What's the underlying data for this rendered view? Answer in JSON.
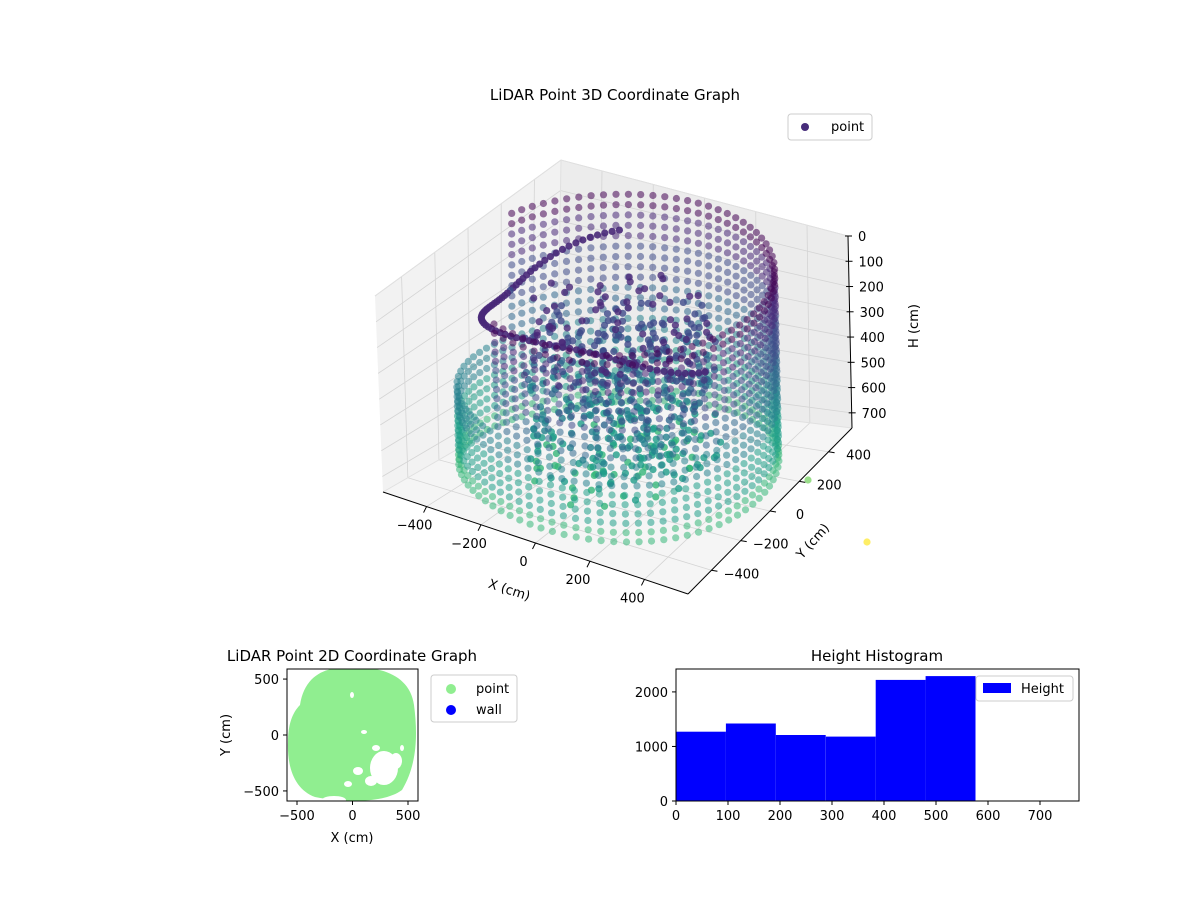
{
  "figure": {
    "colors": {
      "viridis_dark": "#440154",
      "viridis_purple": "#482878",
      "viridis_blue": "#3e4a89",
      "viridis_teal": "#31688e",
      "viridis_cyan": "#26828e",
      "viridis_green": "#1f9e89",
      "viridis_lightgreen": "#35b779",
      "viridis_lime": "#6ece58",
      "viridis_yellow": "#fde725",
      "point_2d": "#90ee90",
      "wall_2d": "#0000ff",
      "histogram": "#0000ff"
    }
  },
  "chart_data": [
    {
      "type": "scatter",
      "projection": "3d",
      "title": "LiDAR Point 3D Coordinate Graph",
      "xlabel": "X (cm)",
      "ylabel": "Y (cm)",
      "zlabel": "H (cm)",
      "xticks": [
        "−400",
        "−200",
        "0",
        "200",
        "400"
      ],
      "yticks": [
        "400",
        "200",
        "0",
        "−200",
        "−400"
      ],
      "zticks": [
        "0",
        "100",
        "200",
        "300",
        "400",
        "500",
        "600",
        "700"
      ],
      "xlim": [
        -560,
        560
      ],
      "ylim": [
        -560,
        560
      ],
      "zlim": [
        760,
        0
      ],
      "z_axis_inverted": true,
      "colormap": "viridis",
      "grid": true,
      "legend": {
        "position": "upper-right",
        "entries": [
          "point"
        ]
      },
      "series": [
        {
          "name": "point",
          "shape": "circular wall",
          "x_center": 0,
          "y_center": 0,
          "radius": 560,
          "z_range": [
            0,
            720
          ]
        },
        {
          "name": "point",
          "shape": "interior cluster",
          "z_range": [
            100,
            720
          ]
        }
      ]
    },
    {
      "type": "scatter",
      "title": "LiDAR Point 2D Coordinate Graph",
      "xlabel": "X (cm)",
      "ylabel": "Y (cm)",
      "xticks": [
        "−500",
        "0",
        "500"
      ],
      "yticks": [
        "500",
        "0",
        "−500"
      ],
      "xlim": [
        -590,
        590
      ],
      "ylim": [
        -590,
        590
      ],
      "legend": {
        "position": "outside-right",
        "entries": [
          "point",
          "wall"
        ]
      },
      "series": [
        {
          "name": "point",
          "shape": "filled disc",
          "x_center": 0,
          "y_center": 0,
          "radius": 590
        },
        {
          "name": "wall",
          "points": []
        }
      ]
    },
    {
      "type": "bar",
      "subtype": "histogram",
      "title": "Height Histogram",
      "xticks": [
        "0",
        "100",
        "200",
        "300",
        "400",
        "500",
        "600",
        "700"
      ],
      "yticks": [
        "0",
        "1000",
        "2000"
      ],
      "xlim": [
        0,
        775
      ],
      "ylim": [
        0,
        2420
      ],
      "legend": {
        "position": "top-right",
        "entries": [
          "Height"
        ]
      },
      "bins": [
        {
          "x0": 0,
          "x1": 96,
          "count": 1270
        },
        {
          "x0": 96,
          "x1": 192,
          "count": 1420
        },
        {
          "x0": 192,
          "x1": 288,
          "count": 1210
        },
        {
          "x0": 288,
          "x1": 384,
          "count": 1180
        },
        {
          "x0": 384,
          "x1": 480,
          "count": 2220
        },
        {
          "x0": 480,
          "x1": 576,
          "count": 2290
        }
      ]
    }
  ]
}
